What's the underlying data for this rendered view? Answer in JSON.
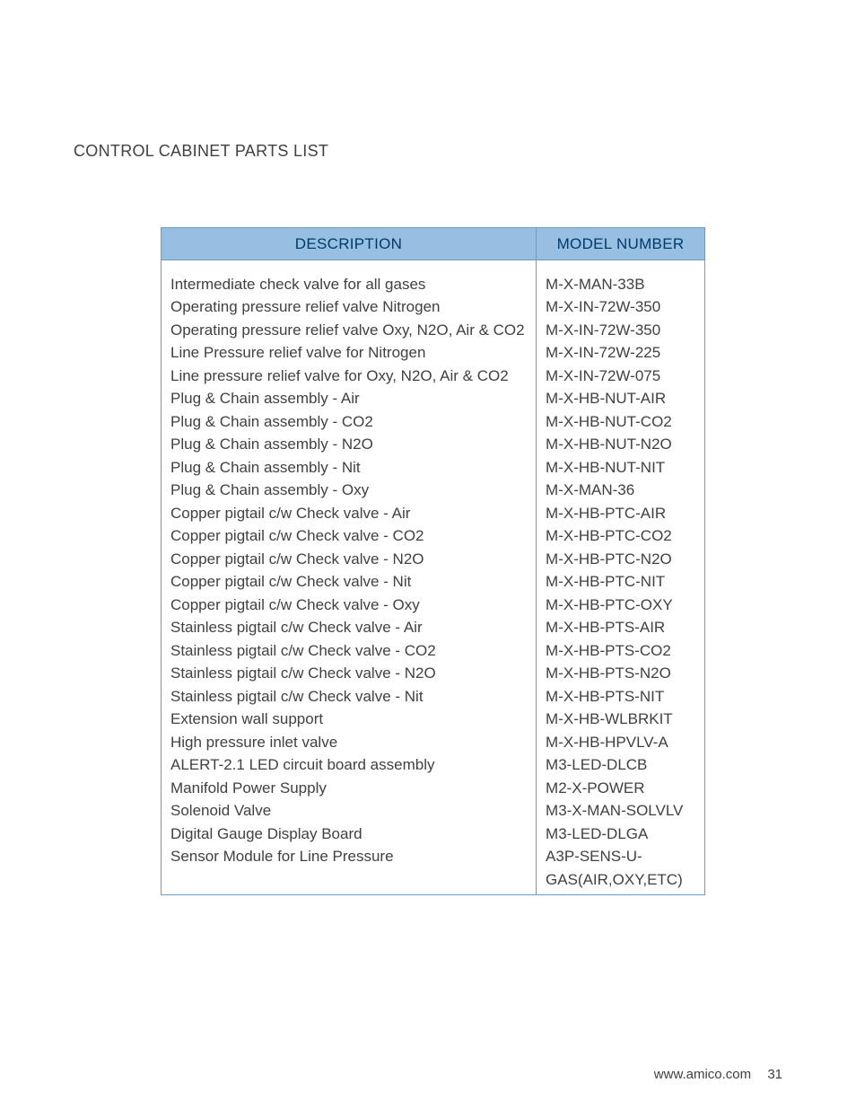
{
  "page": {
    "title": "CONTROL CABINET PARTS LIST",
    "footer_url": "www.amico.com",
    "footer_page": "31"
  },
  "table": {
    "header_bg": "#97bfe1",
    "header_fg": "#003a6a",
    "border_color": "#6b9cc2",
    "text_color": "#414042",
    "columns": {
      "description": "DESCRIPTION",
      "model": "MODEL NUMBER"
    },
    "col_widths": {
      "description": 419,
      "model": 188
    },
    "rows": [
      {
        "description": "Intermediate check valve for all gases",
        "model": "M-X-MAN-33B"
      },
      {
        "description": "Operating pressure relief valve Nitrogen",
        "model": "M-X-IN-72W-350"
      },
      {
        "description": "Operating pressure relief valve Oxy, N2O, Air & CO2",
        "model": "M-X-IN-72W-350"
      },
      {
        "description": "Line Pressure relief valve for Nitrogen",
        "model": "M-X-IN-72W-225"
      },
      {
        "description": "Line pressure relief valve for Oxy, N2O, Air & CO2",
        "model": "M-X-IN-72W-075"
      },
      {
        "description": "Plug & Chain assembly - Air",
        "model": "M-X-HB-NUT-AIR"
      },
      {
        "description": "Plug & Chain assembly - CO2",
        "model": "M-X-HB-NUT-CO2"
      },
      {
        "description": "Plug & Chain assembly - N2O",
        "model": "M-X-HB-NUT-N2O"
      },
      {
        "description": "Plug & Chain assembly - Nit",
        "model": "M-X-HB-NUT-NIT"
      },
      {
        "description": "Plug & Chain assembly - Oxy",
        "model": "M-X-MAN-36"
      },
      {
        "description": "Copper pigtail c/w Check valve - Air",
        "model": "M-X-HB-PTC-AIR"
      },
      {
        "description": "Copper pigtail c/w Check valve - CO2",
        "model": "M-X-HB-PTC-CO2"
      },
      {
        "description": "Copper pigtail c/w Check valve - N2O",
        "model": "M-X-HB-PTC-N2O"
      },
      {
        "description": "Copper pigtail c/w Check valve - Nit",
        "model": "M-X-HB-PTC-NIT"
      },
      {
        "description": "Copper pigtail c/w Check valve - Oxy",
        "model": "M-X-HB-PTC-OXY"
      },
      {
        "description": "Stainless pigtail c/w Check  valve - Air",
        "model": "M-X-HB-PTS-AIR"
      },
      {
        "description": "Stainless pigtail c/w Check  valve - CO2",
        "model": "M-X-HB-PTS-CO2"
      },
      {
        "description": "Stainless pigtail c/w Check  valve - N2O",
        "model": "M-X-HB-PTS-N2O"
      },
      {
        "description": "Stainless pigtail c/w Check  valve - Nit",
        "model": "M-X-HB-PTS-NIT"
      },
      {
        "description": "Extension wall support",
        "model": "M-X-HB-WLBRKIT"
      },
      {
        "description": "High pressure inlet valve",
        "model": "M-X-HB-HPVLV-A"
      },
      {
        "description": "ALERT-2.1 LED circuit board assembly",
        "model": "M3-LED-DLCB"
      },
      {
        "description": "Manifold Power Supply",
        "model": "M2-X-POWER"
      },
      {
        "description": "Solenoid Valve",
        "model": "M3-X-MAN-SOLVLV"
      },
      {
        "description": "Digital Gauge Display Board",
        "model": "M3-LED-DLGA"
      },
      {
        "description": "Sensor Module for Line Pressure",
        "model": "A3P-SENS-U-GAS(AIR,OXY,ETC)"
      }
    ]
  }
}
